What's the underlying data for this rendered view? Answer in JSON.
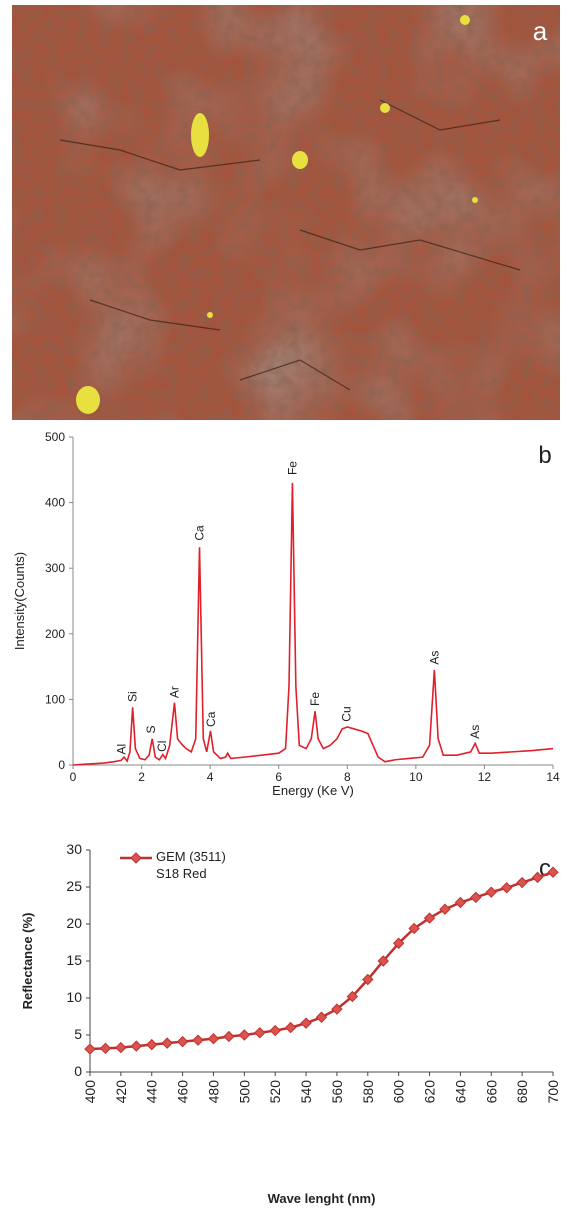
{
  "photo": {
    "label": "a"
  },
  "chart_data": [
    {
      "type": "line",
      "panel_label": "b",
      "x_label": "Energy  (Ke V)",
      "y_label": "Intensity(Counts)",
      "xlim": [
        0,
        14
      ],
      "xticks": [
        0,
        2,
        4,
        6,
        8,
        10,
        12,
        14
      ],
      "ylim": [
        0,
        500
      ],
      "yticks": [
        0,
        100,
        200,
        300,
        400,
        500
      ],
      "peak_labels": [
        "Al",
        "Si",
        "S",
        "Cl",
        "Ar",
        "Ca",
        "Ca",
        "Fe",
        "Fe",
        "Cu",
        "As",
        "As"
      ],
      "x": [
        0,
        0.3,
        0.6,
        0.9,
        1.2,
        1.4,
        1.49,
        1.58,
        1.66,
        1.74,
        1.82,
        1.95,
        2.1,
        2.22,
        2.31,
        2.4,
        2.52,
        2.62,
        2.7,
        2.82,
        2.96,
        3.05,
        3.12,
        3.2,
        3.3,
        3.45,
        3.58,
        3.69,
        3.8,
        3.9,
        4.01,
        4.1,
        4.3,
        4.45,
        4.51,
        4.6,
        5.0,
        5.5,
        6.0,
        6.2,
        6.3,
        6.4,
        6.5,
        6.6,
        6.8,
        6.95,
        7.06,
        7.15,
        7.3,
        7.5,
        7.7,
        7.85,
        8.0,
        8.2,
        8.4,
        8.6,
        8.75,
        8.9,
        9.1,
        9.4,
        9.8,
        10.2,
        10.4,
        10.54,
        10.65,
        10.8,
        11.2,
        11.6,
        11.73,
        11.85,
        12.2,
        12.8,
        13.4,
        14.0
      ],
      "series": [
        {
          "color": "#e0202a",
          "values": [
            0,
            1,
            2,
            3,
            5,
            7,
            12,
            6,
            20,
            88,
            25,
            10,
            8,
            15,
            40,
            12,
            8,
            16,
            10,
            30,
            95,
            40,
            35,
            30,
            25,
            20,
            40,
            332,
            40,
            20,
            52,
            20,
            10,
            12,
            18,
            10,
            12,
            15,
            18,
            25,
            120,
            430,
            120,
            30,
            25,
            40,
            82,
            40,
            25,
            30,
            40,
            55,
            58,
            55,
            52,
            48,
            30,
            12,
            5,
            8,
            10,
            12,
            30,
            145,
            40,
            15,
            15,
            20,
            33,
            18,
            18,
            20,
            22,
            25
          ]
        }
      ]
    },
    {
      "type": "line",
      "panel_label": "c",
      "x_label": "Wave lenght (nm)",
      "y_label": "Reflectance (%)",
      "xlim": [
        400,
        700
      ],
      "xticks": [
        400,
        420,
        440,
        460,
        480,
        500,
        520,
        540,
        560,
        580,
        600,
        620,
        640,
        660,
        680,
        700
      ],
      "ylim": [
        0,
        30
      ],
      "yticks": [
        0,
        5,
        10,
        15,
        20,
        25,
        30
      ],
      "markers": "diamond",
      "legend": "top-left",
      "x": [
        400,
        410,
        420,
        430,
        440,
        450,
        460,
        470,
        480,
        490,
        500,
        510,
        520,
        530,
        540,
        550,
        560,
        570,
        580,
        590,
        600,
        610,
        620,
        630,
        640,
        650,
        660,
        670,
        680,
        690,
        700
      ],
      "series": [
        {
          "name": "GEM (3511) S18 Red",
          "color": "#c0302e",
          "values": [
            3.1,
            3.2,
            3.3,
            3.5,
            3.7,
            3.9,
            4.1,
            4.3,
            4.5,
            4.8,
            5.0,
            5.3,
            5.6,
            6.0,
            6.6,
            7.4,
            8.5,
            10.2,
            12.5,
            15.0,
            17.4,
            19.4,
            20.8,
            22.0,
            22.9,
            23.6,
            24.3,
            24.9,
            25.6,
            26.3,
            27.0
          ]
        }
      ]
    }
  ]
}
